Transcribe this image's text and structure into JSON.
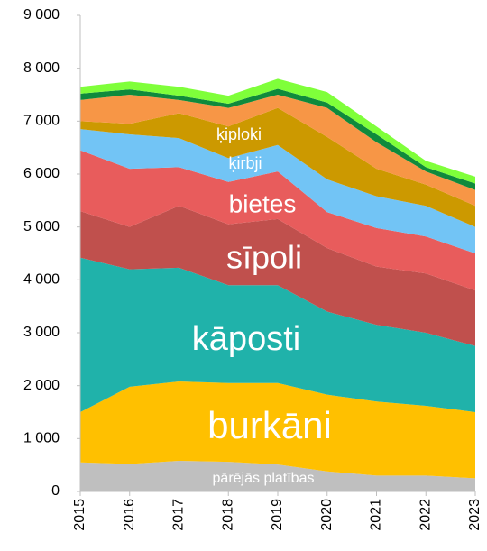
{
  "chart_data": {
    "type": "stacked-area",
    "categories": [
      "2015",
      "2016",
      "2017",
      "2018",
      "2019",
      "2020",
      "2021",
      "2022",
      "2023"
    ],
    "series": [
      {
        "name": "pārējās platības",
        "color": "#bfbfbf",
        "values": [
          550,
          520,
          580,
          560,
          510,
          380,
          300,
          300,
          250
        ]
      },
      {
        "name": "burkāni",
        "color": "#ffc000",
        "values": [
          950,
          1460,
          1500,
          1490,
          1540,
          1450,
          1400,
          1320,
          1250
        ]
      },
      {
        "name": "kāposti",
        "color": "#20b2aa",
        "values": [
          2920,
          2220,
          2150,
          1850,
          1850,
          1570,
          1450,
          1380,
          1250
        ]
      },
      {
        "name": "sīpoli",
        "color": "#c0504d",
        "values": [
          880,
          800,
          1170,
          1150,
          1250,
          1200,
          1100,
          1120,
          1050
        ]
      },
      {
        "name": "bietes",
        "color": "#e85c5c",
        "values": [
          1150,
          1100,
          730,
          800,
          900,
          680,
          730,
          700,
          700
        ]
      },
      {
        "name": "ķirbji",
        "color": "#72c4f5",
        "values": [
          400,
          650,
          550,
          450,
          500,
          620,
          600,
          580,
          500
        ]
      },
      {
        "name": "ķiploki",
        "color": "#cc9900",
        "values": [
          150,
          200,
          470,
          600,
          700,
          800,
          520,
          400,
          400
        ]
      },
      {
        "color": "#f79646",
        "values": [
          400,
          550,
          250,
          350,
          250,
          550,
          500,
          250,
          300
        ]
      },
      {
        "color": "#0f8a3c",
        "values": [
          120,
          100,
          80,
          80,
          110,
          100,
          150,
          80,
          120
        ]
      },
      {
        "color": "#7fff3a",
        "values": [
          130,
          150,
          170,
          150,
          190,
          200,
          150,
          120,
          130
        ]
      }
    ],
    "ylim": [
      0,
      9000
    ],
    "yticks": [
      0,
      {
        "value": 1000,
        "label": "1 000"
      },
      {
        "value": 2000,
        "label": "2 000"
      },
      {
        "value": 3000,
        "label": "3 000"
      },
      {
        "value": 4000,
        "label": "4 000"
      },
      {
        "value": 5000,
        "label": "5 000"
      },
      {
        "value": 6000,
        "label": "6 000"
      },
      {
        "value": 7000,
        "label": "7 000"
      },
      {
        "value": 8000,
        "label": "8 000"
      },
      {
        "value": 9000,
        "label": "9 000"
      }
    ],
    "grid": false
  }
}
